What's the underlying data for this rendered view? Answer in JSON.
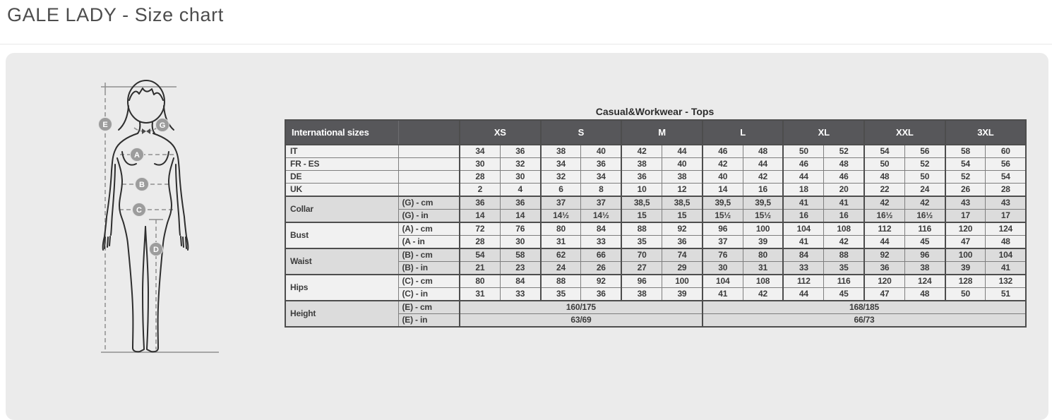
{
  "page": {
    "title": "GALE LADY - Size chart"
  },
  "diagram": {
    "badges": [
      {
        "id": "E",
        "label": "E"
      },
      {
        "id": "G",
        "label": "G"
      },
      {
        "id": "A",
        "label": "A"
      },
      {
        "id": "B",
        "label": "B"
      },
      {
        "id": "C",
        "label": "C"
      },
      {
        "id": "D",
        "label": "D"
      }
    ]
  },
  "table": {
    "title": "Casual&Workwear - Tops",
    "header": {
      "col1": "International sizes",
      "col2": "",
      "sizes": [
        "XS",
        "S",
        "M",
        "L",
        "XL",
        "XXL",
        "3XL"
      ]
    },
    "groups": [
      {
        "type": "single",
        "label": "IT",
        "shade": "light",
        "values": [
          "34",
          "36",
          "38",
          "40",
          "42",
          "44",
          "46",
          "48",
          "50",
          "52",
          "54",
          "56",
          "58",
          "60"
        ]
      },
      {
        "type": "single",
        "label": "FR - ES",
        "shade": "light",
        "values": [
          "30",
          "32",
          "34",
          "36",
          "38",
          "40",
          "42",
          "44",
          "46",
          "48",
          "50",
          "52",
          "54",
          "56"
        ]
      },
      {
        "type": "single",
        "label": "DE",
        "shade": "light",
        "values": [
          "28",
          "30",
          "32",
          "34",
          "36",
          "38",
          "40",
          "42",
          "44",
          "46",
          "48",
          "50",
          "52",
          "54"
        ]
      },
      {
        "type": "single",
        "label": "UK",
        "shade": "light",
        "values": [
          "2",
          "4",
          "6",
          "8",
          "10",
          "12",
          "14",
          "16",
          "18",
          "20",
          "22",
          "24",
          "26",
          "28"
        ]
      },
      {
        "type": "pair",
        "label": "Collar",
        "shade": "dark",
        "rows": [
          {
            "unit": "(G) - cm",
            "values": [
              "36",
              "36",
              "37",
              "37",
              "38,5",
              "38,5",
              "39,5",
              "39,5",
              "41",
              "41",
              "42",
              "42",
              "43",
              "43"
            ]
          },
          {
            "unit": "(G) - in",
            "values": [
              "14",
              "14",
              "14½",
              "14½",
              "15",
              "15",
              "15½",
              "15½",
              "16",
              "16",
              "16½",
              "16½",
              "17",
              "17"
            ]
          }
        ]
      },
      {
        "type": "pair",
        "label": "Bust",
        "shade": "light",
        "rows": [
          {
            "unit": "(A) - cm",
            "values": [
              "72",
              "76",
              "80",
              "84",
              "88",
              "92",
              "96",
              "100",
              "104",
              "108",
              "112",
              "116",
              "120",
              "124"
            ]
          },
          {
            "unit": "(A - in",
            "values": [
              "28",
              "30",
              "31",
              "33",
              "35",
              "36",
              "37",
              "39",
              "41",
              "42",
              "44",
              "45",
              "47",
              "48"
            ]
          }
        ]
      },
      {
        "type": "pair",
        "label": "Waist",
        "shade": "dark",
        "rows": [
          {
            "unit": "(B) - cm",
            "values": [
              "54",
              "58",
              "62",
              "66",
              "70",
              "74",
              "76",
              "80",
              "84",
              "88",
              "92",
              "96",
              "100",
              "104"
            ]
          },
          {
            "unit": "(B) - in",
            "values": [
              "21",
              "23",
              "24",
              "26",
              "27",
              "29",
              "30",
              "31",
              "33",
              "35",
              "36",
              "38",
              "39",
              "41"
            ]
          }
        ]
      },
      {
        "type": "pair",
        "label": "Hips",
        "shade": "light",
        "rows": [
          {
            "unit": "(C) - cm",
            "values": [
              "80",
              "84",
              "88",
              "92",
              "96",
              "100",
              "104",
              "108",
              "112",
              "116",
              "120",
              "124",
              "128",
              "132"
            ]
          },
          {
            "unit": "(C) - in",
            "values": [
              "31",
              "33",
              "35",
              "36",
              "38",
              "39",
              "41",
              "42",
              "44",
              "45",
              "47",
              "48",
              "50",
              "51"
            ]
          }
        ]
      },
      {
        "type": "pair",
        "label": "Height",
        "shade": "dark",
        "rows": [
          {
            "unit": "(E) - cm",
            "spans": [
              {
                "text": "160/175",
                "cols": 6
              },
              {
                "text": "168/185",
                "cols": 8
              }
            ]
          },
          {
            "unit": "(E) - in",
            "spans": [
              {
                "text": "63/69",
                "cols": 6
              },
              {
                "text": "66/73",
                "cols": 8
              }
            ]
          }
        ]
      }
    ]
  },
  "colors": {
    "panel_bg": "#ebebeb",
    "header_bg": "#57575a",
    "row_light": "#f1f1f1",
    "row_dark": "#dcdcdc",
    "border_strong": "#4d4d4d",
    "badge_fill": "#9c9c9c",
    "figure_stroke": "#2e2e2e"
  }
}
